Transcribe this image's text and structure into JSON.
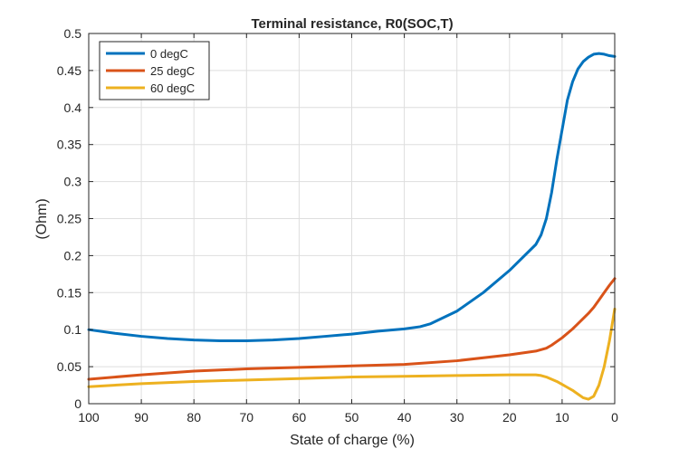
{
  "chart_data": {
    "type": "line",
    "title": "Terminal resistance, R0(SOC,T)",
    "xlabel": "State of charge (%)",
    "ylabel": "(Ohm)",
    "xlim": [
      100,
      0
    ],
    "x_reversed": true,
    "ylim": [
      0,
      0.5
    ],
    "x_ticks": [
      100,
      90,
      80,
      70,
      60,
      50,
      40,
      30,
      20,
      10,
      0
    ],
    "y_ticks": [
      0,
      0.05,
      0.1,
      0.15,
      0.2,
      0.25,
      0.3,
      0.35,
      0.4,
      0.45,
      0.5
    ],
    "y_tick_labels": [
      "0",
      "0.05",
      "0.1",
      "0.15",
      "0.2",
      "0.25",
      "0.3",
      "0.35",
      "0.4",
      "0.45",
      "0.5"
    ],
    "grid": true,
    "legend_position": "top-left",
    "series": [
      {
        "name": "0 degC",
        "color": "#0072bd",
        "x": [
          100,
          95,
          90,
          85,
          80,
          75,
          70,
          65,
          60,
          55,
          50,
          45,
          40,
          37,
          35,
          30,
          25,
          20,
          15,
          14,
          13,
          12,
          11,
          10,
          9,
          8,
          7,
          6,
          5,
          4,
          3,
          2,
          1,
          0
        ],
        "y": [
          0.1,
          0.095,
          0.091,
          0.088,
          0.086,
          0.085,
          0.085,
          0.086,
          0.088,
          0.091,
          0.094,
          0.098,
          0.101,
          0.104,
          0.108,
          0.125,
          0.15,
          0.18,
          0.215,
          0.228,
          0.25,
          0.285,
          0.33,
          0.37,
          0.41,
          0.435,
          0.452,
          0.462,
          0.468,
          0.472,
          0.473,
          0.472,
          0.47,
          0.469
        ]
      },
      {
        "name": "25 degC",
        "color": "#d95319",
        "x": [
          100,
          90,
          80,
          70,
          60,
          50,
          40,
          30,
          20,
          15,
          13,
          12,
          10,
          8,
          6,
          5,
          4,
          3,
          2,
          1,
          0
        ],
        "y": [
          0.033,
          0.039,
          0.044,
          0.047,
          0.049,
          0.051,
          0.053,
          0.058,
          0.066,
          0.071,
          0.075,
          0.079,
          0.089,
          0.101,
          0.115,
          0.122,
          0.13,
          0.14,
          0.15,
          0.16,
          0.169
        ]
      },
      {
        "name": "60 degC",
        "color": "#edb120",
        "x": [
          100,
          90,
          80,
          70,
          60,
          50,
          40,
          30,
          20,
          15,
          14,
          13,
          12,
          11,
          10,
          9,
          8,
          7,
          6,
          5,
          4,
          3,
          2,
          1,
          0
        ],
        "y": [
          0.023,
          0.027,
          0.03,
          0.032,
          0.034,
          0.036,
          0.037,
          0.038,
          0.039,
          0.039,
          0.038,
          0.036,
          0.033,
          0.03,
          0.026,
          0.022,
          0.018,
          0.013,
          0.008,
          0.006,
          0.01,
          0.025,
          0.05,
          0.085,
          0.128
        ]
      }
    ]
  }
}
